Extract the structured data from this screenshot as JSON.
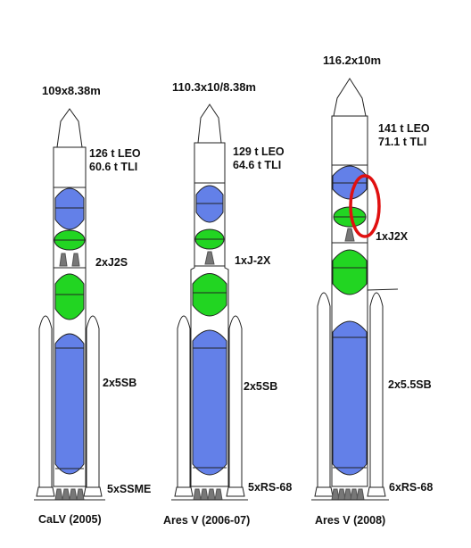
{
  "rockets": [
    {
      "dims": "109x8.38m",
      "payload_leo": "126 t LEO",
      "payload_tli": "60.6 t TLI",
      "upper_engine": "2xJ2S",
      "boosters": "2x5SB",
      "core_engines": "5xSSME",
      "name": "CaLV (2005)"
    },
    {
      "dims": "110.3x10/8.38m",
      "payload_leo": "129 t LEO",
      "payload_tli": "64.6 t TLI",
      "upper_engine": "1xJ-2X",
      "boosters": "2x5SB",
      "core_engines": "5xRS-68",
      "name": "Ares V (2006-07)"
    },
    {
      "dims": "116.2x10m",
      "payload_leo": "141 t LEO",
      "payload_tli": "71.1 t TLI",
      "upper_engine": "1xJ2X",
      "boosters": "2x5.5SB",
      "core_engines": "6xRS-68",
      "name": "Ares V (2008)"
    }
  ],
  "colors": {
    "lox_tank": "#6380e8",
    "lh2_tank": "#22d522",
    "core_tank": "#6380e8",
    "engine": "#777777",
    "highlight_ring": "#e01010",
    "outline": "#222222"
  }
}
